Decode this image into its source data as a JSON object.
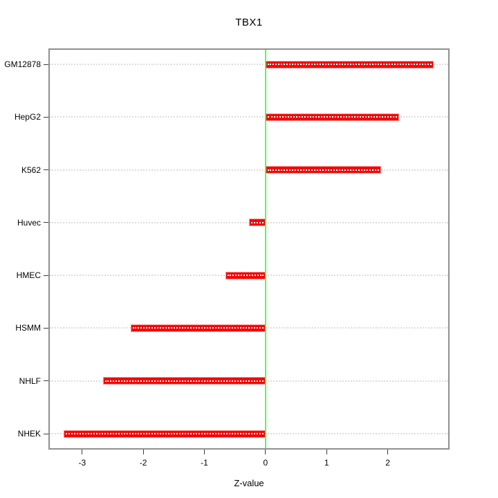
{
  "chart_data": {
    "type": "bar",
    "orientation": "horizontal",
    "title": "TBX1",
    "xlabel": "Z-value",
    "ylabel": "",
    "categories": [
      "GM12878",
      "HepG2",
      "K562",
      "Huvec",
      "HMEC",
      "HSMM",
      "NHLF",
      "NHEK"
    ],
    "values": [
      2.75,
      2.19,
      1.89,
      -0.27,
      -0.65,
      -2.2,
      -2.66,
      -3.3
    ],
    "xticks": [
      -3,
      -2,
      -1,
      0,
      1,
      2
    ],
    "xtick_labels": [
      "-3",
      "-2",
      "-1",
      "0",
      "1",
      "2"
    ],
    "xlim": [
      -3.53,
      2.99
    ],
    "grid": "horizontal dotted line per category",
    "legend": "none",
    "zero_reference_line": 0,
    "colors": {
      "bar_fill": "#f00a0a",
      "bar_edge": "#ff8f8f",
      "bar_dot_pattern": "#ffffff",
      "zero_line": "#4dff4d",
      "gridline": "#dcdcdc",
      "plot_border": "#8f8f8f",
      "tick": "#3a3a3a",
      "text": "#000000"
    }
  }
}
